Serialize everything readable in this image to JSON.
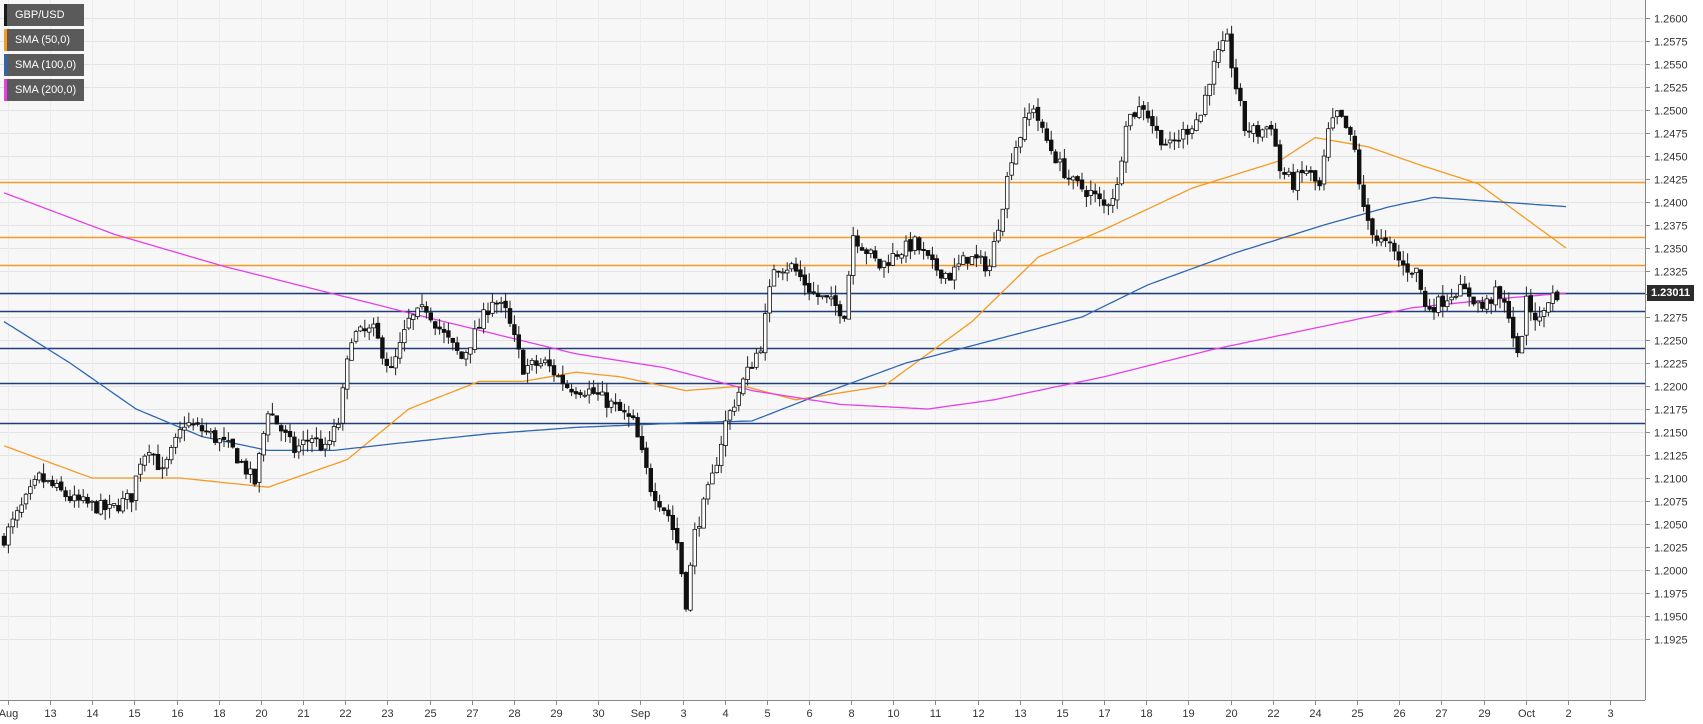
{
  "legend": [
    {
      "label": "GBP/USD",
      "color": "#1a1a1a"
    },
    {
      "label": "SMA (50,0)",
      "color": "#f59a23"
    },
    {
      "label": "SMA (100,0)",
      "color": "#2e67b1"
    },
    {
      "label": "SMA (200,0)",
      "color": "#e83ee8"
    }
  ],
  "price_tag": "1.23011",
  "chart_data": {
    "type": "candlestick",
    "symbol": "GBP/USD",
    "ylim": [
      1.1915,
      1.261
    ],
    "y_ticks": [
      "1.2600",
      "1.2575",
      "1.2550",
      "1.2525",
      "1.2500",
      "1.2475",
      "1.2450",
      "1.2425",
      "1.2400",
      "1.2375",
      "1.2350",
      "1.2325",
      "1.2300",
      "1.2275",
      "1.2250",
      "1.2225",
      "1.2200",
      "1.2175",
      "1.2150",
      "1.2125",
      "1.2100",
      "1.2075",
      "1.2050",
      "1.2025",
      "1.2000",
      "1.1975",
      "1.1950",
      "1.1925"
    ],
    "x_ticks": [
      "Aug",
      "13",
      "14",
      "15",
      "16",
      "18",
      "20",
      "21",
      "22",
      "23",
      "25",
      "27",
      "28",
      "29",
      "30",
      "Sep",
      "3",
      "4",
      "5",
      "6",
      "8",
      "10",
      "11",
      "12",
      "13",
      "15",
      "17",
      "18",
      "19",
      "20",
      "22",
      "24",
      "25",
      "26",
      "27",
      "29",
      "Oct",
      "2",
      "3"
    ],
    "horizontal_levels": [
      {
        "value": 1.2422,
        "color": "#f59a23"
      },
      {
        "value": 1.2362,
        "color": "#f59a23"
      },
      {
        "value": 1.2332,
        "color": "#f59a23"
      },
      {
        "value": 1.2301,
        "color": "#1f3f7a"
      },
      {
        "value": 1.2282,
        "color": "#1f3f7a"
      },
      {
        "value": 1.2241,
        "color": "#1f3f7a"
      },
      {
        "value": 1.2203,
        "color": "#1f3f7a"
      },
      {
        "value": 1.216,
        "color": "#1f3f7a"
      }
    ],
    "close_anchors": [
      [
        0,
        1.2035
      ],
      [
        8,
        1.21
      ],
      [
        16,
        1.2075
      ],
      [
        24,
        1.2065
      ],
      [
        29,
        1.208
      ],
      [
        31,
        1.212
      ],
      [
        33,
        1.2135
      ],
      [
        36,
        1.2105
      ],
      [
        41,
        1.216
      ],
      [
        46,
        1.215
      ],
      [
        52,
        1.213
      ],
      [
        57,
        1.2095
      ],
      [
        60,
        1.2175
      ],
      [
        66,
        1.213
      ],
      [
        70,
        1.2145
      ],
      [
        73,
        1.213
      ],
      [
        76,
        1.216
      ],
      [
        79,
        1.2255
      ],
      [
        84,
        1.226
      ],
      [
        88,
        1.2215
      ],
      [
        92,
        1.227
      ],
      [
        96,
        1.2285
      ],
      [
        100,
        1.2255
      ],
      [
        104,
        1.223
      ],
      [
        108,
        1.2265
      ],
      [
        111,
        1.2295
      ],
      [
        114,
        1.228
      ],
      [
        118,
        1.222
      ],
      [
        123,
        1.2225
      ],
      [
        128,
        1.22
      ],
      [
        133,
        1.2195
      ],
      [
        138,
        1.218
      ],
      [
        143,
        1.216
      ],
      [
        147,
        1.209
      ],
      [
        151,
        1.206
      ],
      [
        153,
        1.203
      ],
      [
        155,
        1.1965
      ],
      [
        157,
        1.204
      ],
      [
        161,
        1.21
      ],
      [
        164,
        1.216
      ],
      [
        168,
        1.2205
      ],
      [
        172,
        1.2245
      ],
      [
        175,
        1.233
      ],
      [
        179,
        1.233
      ],
      [
        184,
        1.23
      ],
      [
        188,
        1.229
      ],
      [
        191,
        1.228
      ],
      [
        193,
        1.2365
      ],
      [
        199,
        1.233
      ],
      [
        203,
        1.2345
      ],
      [
        207,
        1.2355
      ],
      [
        211,
        1.233
      ],
      [
        215,
        1.232
      ],
      [
        219,
        1.234
      ],
      [
        224,
        1.233
      ],
      [
        227,
        1.24
      ],
      [
        229,
        1.245
      ],
      [
        232,
        1.2485
      ],
      [
        234,
        1.2505
      ],
      [
        236,
        1.2475
      ],
      [
        240,
        1.244
      ],
      [
        243,
        1.242
      ],
      [
        247,
        1.241
      ],
      [
        250,
        1.2395
      ],
      [
        253,
        1.2415
      ],
      [
        255,
        1.249
      ],
      [
        259,
        1.2505
      ],
      [
        262,
        1.2475
      ],
      [
        265,
        1.246
      ],
      [
        269,
        1.248
      ],
      [
        272,
        1.2495
      ],
      [
        274,
        1.2535
      ],
      [
        276,
        1.256
      ],
      [
        278,
        1.2575
      ],
      [
        280,
        1.2525
      ],
      [
        282,
        1.248
      ],
      [
        285,
        1.2475
      ],
      [
        288,
        1.2485
      ],
      [
        290,
        1.2435
      ],
      [
        293,
        1.242
      ],
      [
        296,
        1.2435
      ],
      [
        299,
        1.2415
      ],
      [
        301,
        1.2475
      ],
      [
        303,
        1.2495
      ],
      [
        305,
        1.248
      ],
      [
        307,
        1.2455
      ],
      [
        309,
        1.239
      ],
      [
        312,
        1.236
      ],
      [
        315,
        1.235
      ],
      [
        318,
        1.233
      ],
      [
        321,
        1.2325
      ],
      [
        323,
        1.2285
      ],
      [
        326,
        1.229
      ],
      [
        330,
        1.2305
      ],
      [
        333,
        1.23
      ],
      [
        336,
        1.2285
      ],
      [
        339,
        1.23
      ],
      [
        342,
        1.228
      ],
      [
        344,
        1.223
      ],
      [
        346,
        1.229
      ],
      [
        349,
        1.227
      ],
      [
        351,
        1.2295
      ],
      [
        353,
        1.2301
      ]
    ],
    "sma_50": [
      [
        0,
        1.2135
      ],
      [
        20,
        1.21
      ],
      [
        40,
        1.21
      ],
      [
        60,
        1.209
      ],
      [
        78,
        1.212
      ],
      [
        92,
        1.2175
      ],
      [
        108,
        1.2205
      ],
      [
        118,
        1.2205
      ],
      [
        130,
        1.2215
      ],
      [
        140,
        1.221
      ],
      [
        155,
        1.2195
      ],
      [
        168,
        1.22
      ],
      [
        180,
        1.2185
      ],
      [
        200,
        1.22
      ],
      [
        220,
        1.227
      ],
      [
        235,
        1.234
      ],
      [
        250,
        1.237
      ],
      [
        270,
        1.2415
      ],
      [
        290,
        1.2445
      ],
      [
        298,
        1.247
      ],
      [
        310,
        1.246
      ],
      [
        322,
        1.244
      ],
      [
        335,
        1.242
      ],
      [
        345,
        1.2385
      ],
      [
        355,
        1.235
      ]
    ],
    "sma_100": [
      [
        0,
        1.227
      ],
      [
        15,
        1.2225
      ],
      [
        30,
        1.2175
      ],
      [
        45,
        1.2145
      ],
      [
        60,
        1.213
      ],
      [
        75,
        1.213
      ],
      [
        90,
        1.2138
      ],
      [
        110,
        1.2148
      ],
      [
        130,
        1.2155
      ],
      [
        155,
        1.216
      ],
      [
        170,
        1.2162
      ],
      [
        185,
        1.219
      ],
      [
        205,
        1.2225
      ],
      [
        225,
        1.225
      ],
      [
        245,
        1.2275
      ],
      [
        260,
        1.231
      ],
      [
        280,
        1.2345
      ],
      [
        300,
        1.2375
      ],
      [
        315,
        1.2395
      ],
      [
        325,
        1.2405
      ],
      [
        340,
        1.24
      ],
      [
        355,
        1.2395
      ]
    ],
    "sma_200": [
      [
        0,
        1.241
      ],
      [
        25,
        1.2365
      ],
      [
        50,
        1.233
      ],
      [
        75,
        1.23
      ],
      [
        100,
        1.227
      ],
      [
        130,
        1.2235
      ],
      [
        150,
        1.222
      ],
      [
        170,
        1.2195
      ],
      [
        190,
        1.218
      ],
      [
        210,
        1.2175
      ],
      [
        225,
        1.2185
      ],
      [
        250,
        1.221
      ],
      [
        275,
        1.224
      ],
      [
        300,
        1.2265
      ],
      [
        320,
        1.2285
      ],
      [
        340,
        1.2295
      ],
      [
        355,
        1.2301
      ]
    ]
  }
}
